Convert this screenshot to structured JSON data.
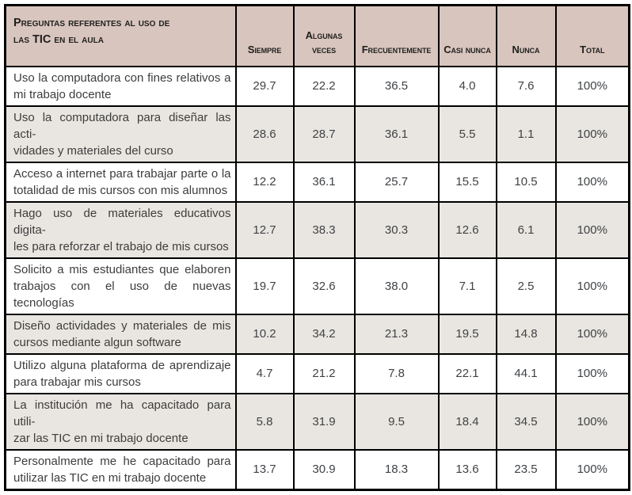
{
  "colors": {
    "header_bg": "#d8c5bd",
    "row_bg": "#ffffff",
    "row_alt_bg": "#e9e6e1",
    "border": "#000000",
    "header_text": "#1f1f1f",
    "body_text": "#3f4245"
  },
  "table": {
    "header": {
      "question_column_title_lines": [
        "Preguntas referentes al uso de",
        "las TIC en el aula"
      ],
      "columns": [
        {
          "key": "siempre",
          "label": "Siempre"
        },
        {
          "key": "algunas-veces",
          "label": "Algunas veces"
        },
        {
          "key": "frecuentemente",
          "label": "Frecuentemente"
        },
        {
          "key": "casi-nunca",
          "label": "Casi nunca"
        },
        {
          "key": "nunca",
          "label": "Nunca"
        },
        {
          "key": "total",
          "label": "Total"
        }
      ]
    },
    "rows": [
      {
        "question_lines": [
          "Uso la computadora con fines relativos a",
          "mi trabajo docente"
        ],
        "values": [
          "29.7",
          "22.2",
          "36.5",
          "4.0",
          "7.6",
          "100%"
        ]
      },
      {
        "question_lines": [
          "Uso la computadora para diseñar las acti-",
          "vidades y materiales del curso"
        ],
        "values": [
          "28.6",
          "28.7",
          "36.1",
          "5.5",
          "1.1",
          "100%"
        ]
      },
      {
        "question_lines": [
          "Acceso a internet para trabajar parte o la",
          "totalidad de mis cursos con mis alumnos"
        ],
        "values": [
          "12.2",
          "36.1",
          "25.7",
          "15.5",
          "10.5",
          "100%"
        ]
      },
      {
        "question_lines": [
          "Hago uso de materiales educativos digita-",
          "les para reforzar el trabajo de mis cursos"
        ],
        "values": [
          "12.7",
          "38.3",
          "30.3",
          "12.6",
          "6.1",
          "100%"
        ]
      },
      {
        "question_lines": [
          "Solicito a mis estudiantes que elaboren",
          "trabajos con el uso de nuevas tecnologías"
        ],
        "values": [
          "19.7",
          "32.6",
          "38.0",
          "7.1",
          "2.5",
          "100%"
        ]
      },
      {
        "question_lines": [
          "Diseño actividades y materiales de mis",
          "cursos mediante algun software"
        ],
        "values": [
          "10.2",
          "34.2",
          "21.3",
          "19.5",
          "14.8",
          "100%"
        ]
      },
      {
        "question_lines": [
          "Utilizo alguna plataforma de aprendizaje",
          "para trabajar mis cursos"
        ],
        "values": [
          "4.7",
          "21.2",
          "7.8",
          "22.1",
          "44.1",
          "100%"
        ]
      },
      {
        "question_lines": [
          "La institución me ha capacitado para utili-",
          "zar las TIC en mi trabajo docente"
        ],
        "values": [
          "5.8",
          "31.9",
          "9.5",
          "18.4",
          "34.5",
          "100%"
        ]
      },
      {
        "question_lines": [
          "Personalmente me he capacitado para",
          "utilizar las TIC en mi trabajo docente"
        ],
        "values": [
          "13.7",
          "30.9",
          "18.3",
          "13.6",
          "23.5",
          "100%"
        ]
      }
    ]
  }
}
